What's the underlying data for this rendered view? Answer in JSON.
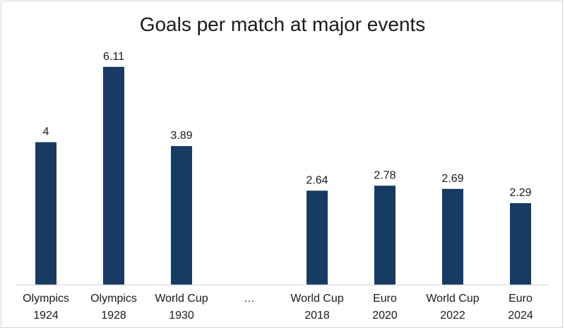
{
  "chart_data": {
    "type": "bar",
    "title": "Goals per match at major events",
    "xlabel": "",
    "ylabel": "",
    "ylim": [
      0,
      6.6
    ],
    "grid": false,
    "legend": "none",
    "bar_color": "#173b63",
    "categories": [
      [
        "Olympics",
        "1924"
      ],
      [
        "Olympics",
        "1928"
      ],
      [
        "World Cup",
        "1930"
      ],
      [
        "…",
        ""
      ],
      [
        "World Cup",
        "2018"
      ],
      [
        "Euro",
        "2020"
      ],
      [
        "World Cup",
        "2022"
      ],
      [
        "Euro",
        "2024"
      ]
    ],
    "values": [
      4,
      6.11,
      3.89,
      null,
      2.64,
      2.78,
      2.69,
      2.29
    ],
    "value_labels": [
      "4",
      "6.11",
      "3.89",
      "",
      "2.64",
      "2.78",
      "2.69",
      "2.29"
    ]
  }
}
